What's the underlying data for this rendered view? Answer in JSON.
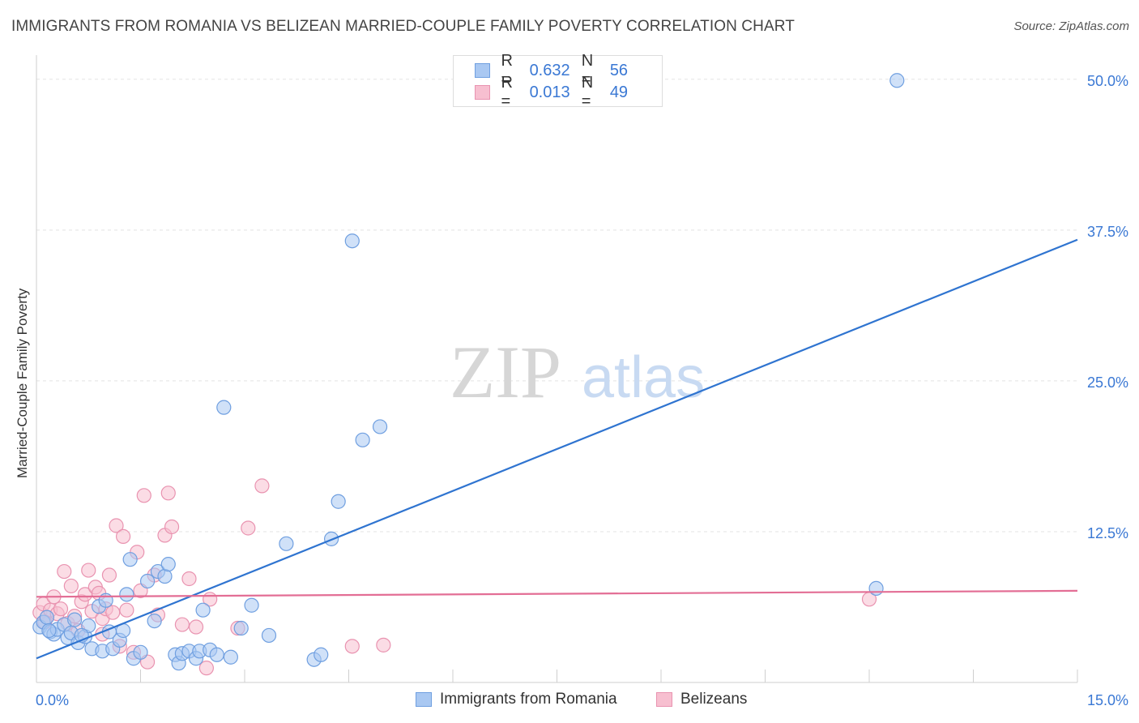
{
  "title": "IMMIGRANTS FROM ROMANIA VS BELIZEAN MARRIED-COUPLE FAMILY POVERTY CORRELATION CHART",
  "source": "Source: ZipAtlas.com",
  "watermark": {
    "zip": "ZIP",
    "atlas": "atlas"
  },
  "legend": {
    "rows": [
      {
        "r_label": "R = ",
        "r_value": "0.632",
        "n_label": "N = ",
        "n_value": "56",
        "fill": "#a9c8f2",
        "stroke": "#6f9fe0"
      },
      {
        "r_label": "R = ",
        "r_value": "0.013",
        "n_label": "N = ",
        "n_value": "49",
        "fill": "#f7bfd0",
        "stroke": "#e993b0"
      }
    ]
  },
  "bottom_legend": [
    "Immigrants from Romania",
    "Belizeans"
  ],
  "chart_data": {
    "type": "scatter",
    "title": "IMMIGRANTS FROM ROMANIA VS BELIZEAN MARRIED-COUPLE FAMILY POVERTY CORRELATION CHART",
    "xlabel": "",
    "ylabel": "Married-Couple Family Poverty",
    "xlim": [
      0,
      15
    ],
    "ylim": [
      0,
      52
    ],
    "x_tick_labels": [
      "0.0%",
      "15.0%"
    ],
    "y_ticks": [
      12.5,
      25.0,
      37.5,
      50.0
    ],
    "y_tick_labels": [
      "12.5%",
      "25.0%",
      "37.5%",
      "50.0%"
    ],
    "grid": true,
    "series": [
      {
        "name": "Immigrants from Romania",
        "color": "#6f9fe0",
        "fill": "#a9c8f2",
        "line_color": "#2f74d0",
        "trend": {
          "x": [
            0,
            15
          ],
          "y": [
            2.0,
            36.7
          ]
        },
        "points": [
          [
            0.05,
            4.6
          ],
          [
            0.1,
            5.0
          ],
          [
            0.15,
            5.4
          ],
          [
            0.2,
            4.2
          ],
          [
            0.25,
            4.0
          ],
          [
            0.3,
            4.4
          ],
          [
            0.4,
            4.8
          ],
          [
            0.45,
            3.7
          ],
          [
            0.5,
            4.1
          ],
          [
            0.55,
            5.2
          ],
          [
            0.6,
            3.3
          ],
          [
            0.7,
            3.8
          ],
          [
            0.75,
            4.7
          ],
          [
            0.8,
            2.8
          ],
          [
            0.9,
            6.3
          ],
          [
            0.95,
            2.6
          ],
          [
            1.0,
            6.8
          ],
          [
            1.05,
            4.2
          ],
          [
            1.1,
            2.8
          ],
          [
            1.2,
            3.5
          ],
          [
            1.25,
            4.3
          ],
          [
            1.3,
            7.3
          ],
          [
            1.35,
            10.2
          ],
          [
            1.4,
            2.0
          ],
          [
            1.5,
            2.5
          ],
          [
            1.6,
            8.4
          ],
          [
            1.7,
            5.1
          ],
          [
            1.75,
            9.2
          ],
          [
            1.85,
            8.8
          ],
          [
            1.9,
            9.8
          ],
          [
            2.0,
            2.3
          ],
          [
            2.05,
            1.6
          ],
          [
            2.1,
            2.4
          ],
          [
            2.2,
            2.6
          ],
          [
            2.3,
            2.0
          ],
          [
            2.35,
            2.6
          ],
          [
            2.4,
            6.0
          ],
          [
            2.5,
            2.7
          ],
          [
            2.6,
            2.3
          ],
          [
            2.7,
            22.8
          ],
          [
            2.8,
            2.1
          ],
          [
            2.95,
            4.5
          ],
          [
            3.1,
            6.4
          ],
          [
            3.35,
            3.9
          ],
          [
            3.6,
            11.5
          ],
          [
            4.0,
            1.9
          ],
          [
            4.1,
            2.3
          ],
          [
            4.25,
            11.9
          ],
          [
            4.35,
            15.0
          ],
          [
            4.55,
            36.6
          ],
          [
            4.7,
            20.1
          ],
          [
            4.95,
            21.2
          ],
          [
            12.4,
            49.9
          ],
          [
            12.1,
            7.8
          ],
          [
            0.18,
            4.3
          ],
          [
            0.65,
            3.9
          ]
        ]
      },
      {
        "name": "Belizeans",
        "color": "#e993b0",
        "fill": "#f7bfd0",
        "line_color": "#e36e95",
        "trend": {
          "x": [
            0,
            15
          ],
          "y": [
            7.1,
            7.6
          ]
        },
        "points": [
          [
            0.05,
            5.8
          ],
          [
            0.1,
            6.5
          ],
          [
            0.15,
            5.4
          ],
          [
            0.2,
            6.0
          ],
          [
            0.25,
            7.1
          ],
          [
            0.3,
            5.7
          ],
          [
            0.35,
            6.1
          ],
          [
            0.4,
            9.2
          ],
          [
            0.45,
            4.9
          ],
          [
            0.5,
            8.0
          ],
          [
            0.55,
            5.5
          ],
          [
            0.6,
            4.3
          ],
          [
            0.65,
            6.7
          ],
          [
            0.7,
            7.3
          ],
          [
            0.75,
            9.3
          ],
          [
            0.8,
            5.9
          ],
          [
            0.85,
            7.9
          ],
          [
            0.9,
            7.4
          ],
          [
            0.95,
            5.3
          ],
          [
            1.0,
            6.1
          ],
          [
            1.05,
            8.9
          ],
          [
            1.1,
            5.8
          ],
          [
            1.15,
            13.0
          ],
          [
            1.2,
            3.0
          ],
          [
            1.25,
            12.1
          ],
          [
            1.3,
            6.0
          ],
          [
            1.4,
            2.5
          ],
          [
            1.45,
            10.8
          ],
          [
            1.5,
            7.6
          ],
          [
            1.55,
            15.5
          ],
          [
            1.6,
            1.7
          ],
          [
            1.7,
            8.9
          ],
          [
            1.75,
            5.6
          ],
          [
            1.85,
            12.2
          ],
          [
            1.9,
            15.7
          ],
          [
            1.95,
            12.9
          ],
          [
            2.1,
            4.8
          ],
          [
            2.2,
            8.6
          ],
          [
            2.3,
            4.6
          ],
          [
            2.45,
            1.2
          ],
          [
            2.5,
            6.9
          ],
          [
            2.9,
            4.5
          ],
          [
            3.05,
            12.8
          ],
          [
            3.25,
            16.3
          ],
          [
            4.55,
            3.0
          ],
          [
            5.0,
            3.1
          ],
          [
            12.0,
            6.9
          ],
          [
            0.12,
            5.0
          ],
          [
            0.95,
            4.0
          ]
        ]
      }
    ]
  }
}
